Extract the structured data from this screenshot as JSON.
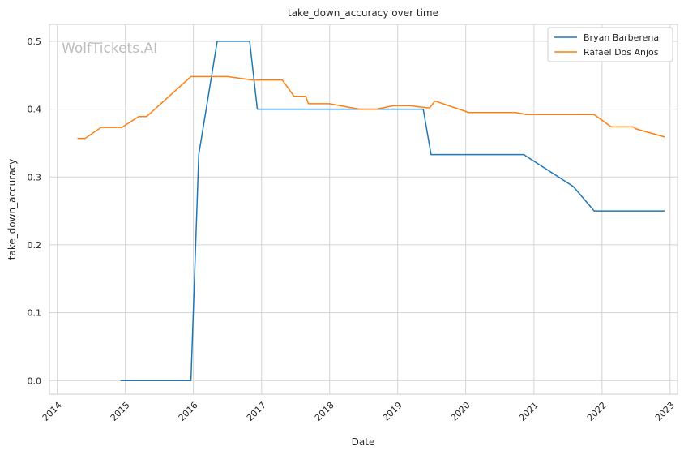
{
  "chart_data": {
    "type": "line",
    "title": "take_down_accuracy over time",
    "xlabel": "Date",
    "ylabel": "take_down_accuracy",
    "watermark": "WolfTickets.AI",
    "xlim": [
      "2013-11-20",
      "2023-02-10"
    ],
    "ylim": [
      -0.02,
      0.525
    ],
    "x_ticks": [
      "2014",
      "2015",
      "2016",
      "2017",
      "2018",
      "2019",
      "2020",
      "2021",
      "2022",
      "2023"
    ],
    "y_ticks": [
      "0.0",
      "0.1",
      "0.2",
      "0.3",
      "0.4",
      "0.5"
    ],
    "grid": true,
    "legend_position": "top-right",
    "series": [
      {
        "name": "Bryan Barberena",
        "color": "#1f77b4",
        "points": [
          [
            "2014-12-06",
            0.0
          ],
          [
            "2015-12-19",
            0.0
          ],
          [
            "2016-01-30",
            0.333
          ],
          [
            "2016-05-08",
            0.5
          ],
          [
            "2016-10-29",
            0.5
          ],
          [
            "2016-12-09",
            0.4
          ],
          [
            "2019-05-18",
            0.4
          ],
          [
            "2019-06-29",
            0.333
          ],
          [
            "2020-11-07",
            0.333
          ],
          [
            "2021-07-31",
            0.286
          ],
          [
            "2021-11-20",
            0.25
          ],
          [
            "2022-12-03",
            0.25
          ]
        ]
      },
      {
        "name": "Rafael Dos Anjos",
        "color": "#ff7f0e",
        "points": [
          [
            "2014-04-19",
            0.357
          ],
          [
            "2014-05-31",
            0.357
          ],
          [
            "2014-08-23",
            0.373
          ],
          [
            "2014-12-13",
            0.373
          ],
          [
            "2015-03-14",
            0.389
          ],
          [
            "2015-04-25",
            0.389
          ],
          [
            "2015-12-19",
            0.448
          ],
          [
            "2016-07-02",
            0.448
          ],
          [
            "2016-11-12",
            0.443
          ],
          [
            "2017-04-22",
            0.443
          ],
          [
            "2017-06-24",
            0.419
          ],
          [
            "2017-08-26",
            0.419
          ],
          [
            "2017-09-09",
            0.408
          ],
          [
            "2017-12-30",
            0.408
          ],
          [
            "2018-06-09",
            0.4
          ],
          [
            "2018-09-08",
            0.4
          ],
          [
            "2018-12-08",
            0.405
          ],
          [
            "2019-03-09",
            0.405
          ],
          [
            "2019-06-08",
            0.402
          ],
          [
            "2019-06-22",
            0.402
          ],
          [
            "2019-07-20",
            0.412
          ],
          [
            "2020-01-18",
            0.395
          ],
          [
            "2020-09-26",
            0.395
          ],
          [
            "2020-11-21",
            0.392
          ],
          [
            "2021-11-20",
            0.392
          ],
          [
            "2022-02-19",
            0.374
          ],
          [
            "2022-06-18",
            0.374
          ],
          [
            "2022-07-02",
            0.371
          ],
          [
            "2022-12-03",
            0.359
          ]
        ]
      }
    ]
  }
}
